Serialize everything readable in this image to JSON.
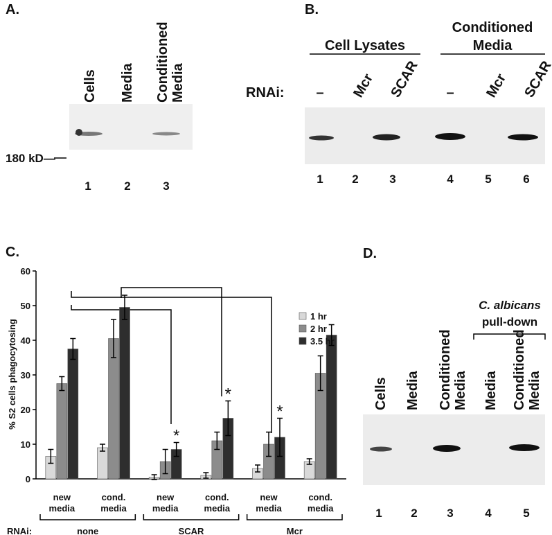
{
  "panels": {
    "A": {
      "label": "A.",
      "lanes": [
        [
          "Cells"
        ],
        [
          "Media"
        ],
        [
          "Conditioned",
          "Media"
        ]
      ],
      "marker": "180 kD—",
      "numbers": [
        1,
        2,
        3
      ]
    },
    "B": {
      "label": "B.",
      "groups": [
        [
          "Cell Lysates"
        ],
        [
          "Conditioned",
          "Media"
        ]
      ],
      "rnai": "RNAi:",
      "lanes": [
        "–",
        "Mcr",
        "SCAR",
        "–",
        "Mcr",
        "SCAR"
      ],
      "numbers": [
        1,
        2,
        3,
        4,
        5,
        6
      ]
    },
    "C": {
      "label": "C."
    },
    "D": {
      "label": "D.",
      "header": [
        "C. albicans",
        "pull-down"
      ],
      "lanes": [
        [
          "Cells"
        ],
        [
          "Media"
        ],
        [
          "Conditioned",
          "Media"
        ],
        [
          "Media"
        ],
        [
          "Conditioned",
          "Media"
        ]
      ],
      "numbers": [
        1,
        2,
        3,
        4,
        5
      ]
    }
  },
  "chart_data": {
    "type": "bar",
    "ylabel": "% S2 cells phagocytosing",
    "categories": [
      [
        "new",
        "media"
      ],
      [
        "cond.",
        "media"
      ],
      [
        "new",
        "media"
      ],
      [
        "cond.",
        "media"
      ],
      [
        "new",
        "media"
      ],
      [
        "cond.",
        "media"
      ]
    ],
    "group_label": "RNAi:",
    "groups": [
      "none",
      "SCAR",
      "Mcr"
    ],
    "series": [
      {
        "name": "1 hr",
        "color": "#d9d9d9",
        "values": [
          6.5,
          9,
          0.5,
          1,
          3,
          5
        ],
        "errors": [
          2,
          1,
          0.7,
          0.8,
          1,
          0.8
        ]
      },
      {
        "name": "2 hr",
        "color": "#8c8c8c",
        "values": [
          27.5,
          40.5,
          5,
          11,
          10,
          30.5
        ],
        "errors": [
          2,
          5.5,
          3.5,
          2.5,
          3.5,
          5
        ]
      },
      {
        "name": "3.5 hr",
        "color": "#2e2e2e",
        "values": [
          37.5,
          49.5,
          8.5,
          17.5,
          12,
          41.5
        ],
        "errors": [
          3,
          3.5,
          2,
          5,
          5.5,
          3
        ]
      }
    ],
    "annotations": [
      "*",
      "*",
      "*"
    ],
    "ylim": [
      0,
      60
    ],
    "yticks": [
      0,
      10,
      20,
      30,
      40,
      50,
      60
    ]
  }
}
